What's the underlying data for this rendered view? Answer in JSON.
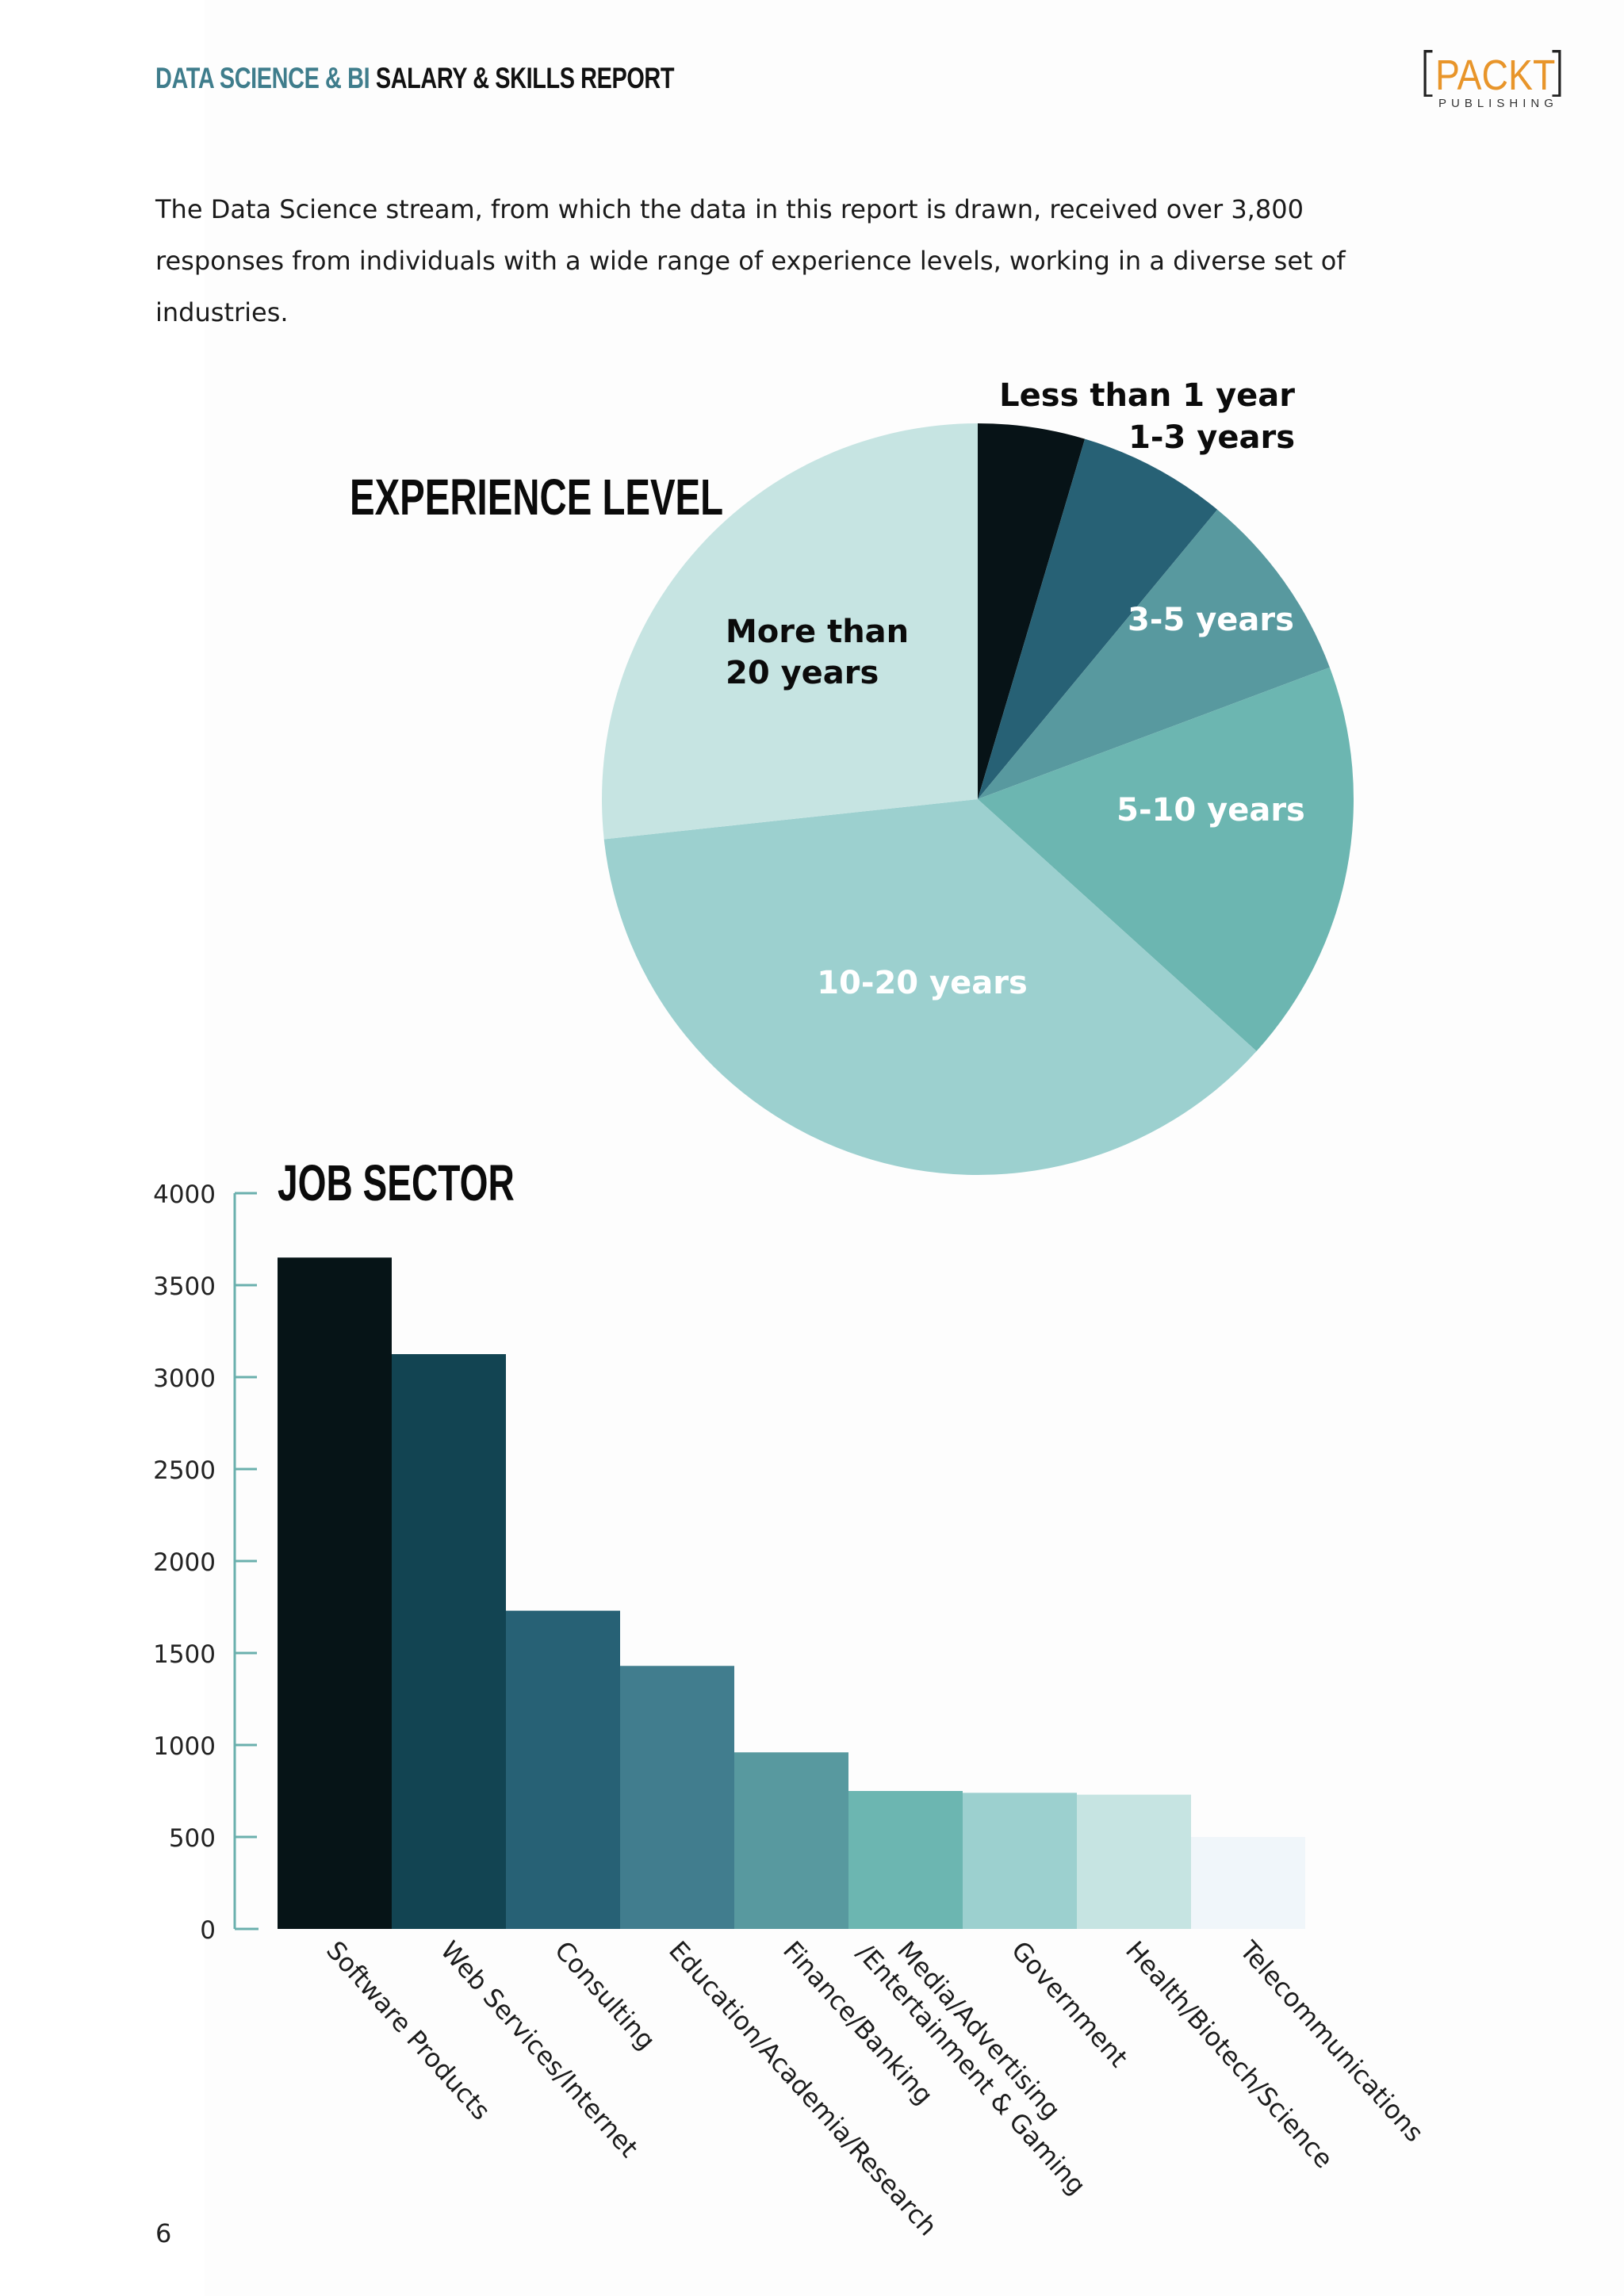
{
  "header": {
    "title_highlight": "DATA SCIENCE & BI",
    "title_rest": " SALARY & SKILLS REPORT",
    "logo_word": "PACKT",
    "logo_sub": "PUBLISHING",
    "logo_bracket_open": "[",
    "logo_bracket_close": "]"
  },
  "intro_text": "The Data Science stream, from which the data in this report is drawn, received over 3,800 responses from individuals with a wide range of experience levels, working in a diverse set of industries.",
  "page_number": "6",
  "colors": {
    "accent": "#3f7d8c",
    "logo_orange": "#e8952a",
    "axis": "#6ab0ad"
  },
  "chart_data": [
    {
      "type": "pie",
      "title": "EXPERIENCE LEVEL",
      "slices": [
        {
          "label": "Less than 1 year",
          "value": 4.6,
          "color": "#071317",
          "label_color": "#0b0b0b"
        },
        {
          "label": "1-3 years",
          "value": 6.4,
          "color": "#276175",
          "label_color": "#0b0b0b"
        },
        {
          "label": "3-5 years",
          "value": 8.3,
          "color": "#58999f",
          "label_color": "#ffffff"
        },
        {
          "label": "5-10 years",
          "value": 17.4,
          "color": "#6cb6b1",
          "label_color": "#ffffff"
        },
        {
          "label": "10-20 years",
          "value": 36.6,
          "color": "#9cd0cf",
          "label_color": "#ffffff"
        },
        {
          "label": "More than 20 years",
          "value": 26.7,
          "color": "#c6e4e2",
          "label_color": "#0b0b0b"
        }
      ]
    },
    {
      "type": "bar",
      "title": "JOB SECTOR",
      "categories": [
        "Software Products",
        "Web Services/Internet",
        "Consulting",
        "Education/Academia/Research",
        "Finance/Banking",
        "Media/Advertising /Entertainment & Gaming",
        "Government",
        "Health/Biotech/Science",
        "Telecommunications"
      ],
      "values": [
        3650,
        3125,
        1730,
        1430,
        960,
        750,
        740,
        730,
        500
      ],
      "colors": [
        "#061417",
        "#124452",
        "#276175",
        "#417d8e",
        "#58999f",
        "#6cb6b1",
        "#9cd0cf",
        "#c6e4e2",
        "#f0f6fa"
      ],
      "yticks": [
        "0",
        "500",
        "1000",
        "1500",
        "2000",
        "2500",
        "3000",
        "3500",
        "4000"
      ],
      "ylim": [
        0,
        4000
      ],
      "grid": false
    }
  ]
}
